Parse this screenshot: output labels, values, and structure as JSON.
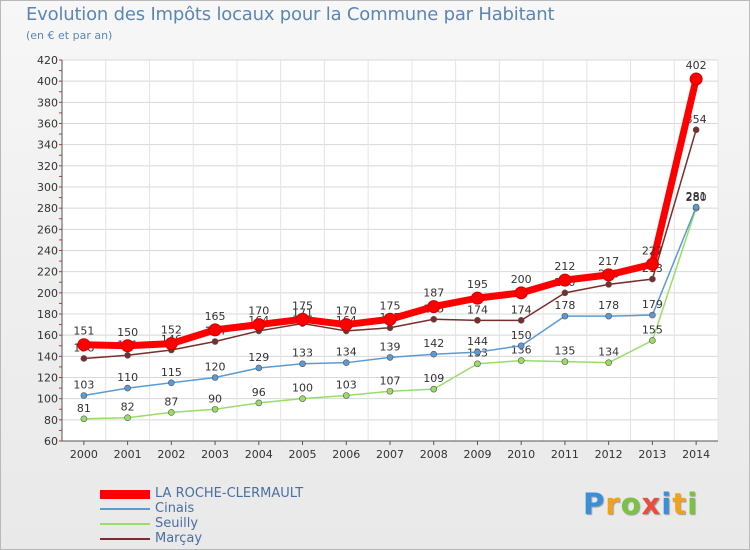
{
  "chart_data": {
    "type": "line",
    "title": "Evolution des Impôts locaux pour la Commune par Habitant",
    "subtitle": "(en € et par an)",
    "categories": [
      "2000",
      "2001",
      "2002",
      "2003",
      "2004",
      "2005",
      "2006",
      "2007",
      "2008",
      "2009",
      "2010",
      "2011",
      "2012",
      "2013",
      "2014"
    ],
    "ylim": [
      60,
      420
    ],
    "yticks": [
      60,
      80,
      100,
      120,
      140,
      160,
      180,
      200,
      220,
      240,
      260,
      280,
      300,
      320,
      340,
      360,
      380,
      400,
      420
    ],
    "grid": true,
    "legend_position": "bottom-left",
    "series": [
      {
        "name": "LA ROCHE-CLERMAULT",
        "color": "#ff0000",
        "values": [
          151,
          150,
          152,
          165,
          170,
          175,
          170,
          175,
          187,
          195,
          200,
          212,
          217,
          227,
          402
        ],
        "labels": [
          "151",
          "150",
          "152",
          "165",
          "170",
          "175",
          "170",
          "175",
          "187",
          "195",
          "200",
          "212",
          "217",
          "227",
          "402"
        ]
      },
      {
        "name": "Cinais",
        "color": "#5b9bd5",
        "values": [
          103,
          110,
          115,
          120,
          129,
          133,
          134,
          139,
          142,
          144,
          150,
          178,
          178,
          179,
          281
        ],
        "labels": [
          "103",
          "110",
          "115",
          "120",
          "129",
          "133",
          "134",
          "139",
          "142",
          "144",
          "150",
          "178",
          "178",
          "179",
          "281"
        ]
      },
      {
        "name": "Seuilly",
        "color": "#99dd66",
        "values": [
          81,
          82,
          87,
          90,
          96,
          100,
          103,
          107,
          109,
          133,
          136,
          135,
          134,
          155,
          280
        ],
        "labels": [
          "81",
          "82",
          "87",
          "90",
          "96",
          "100",
          "103",
          "107",
          "109",
          "133",
          "136",
          "135",
          "134",
          "155",
          "280"
        ]
      },
      {
        "name": "Marçay",
        "color": "#7a2d2d",
        "values": [
          138,
          141,
          146,
          154,
          164,
          171,
          164,
          167,
          175,
          174,
          174,
          200,
          208,
          213,
          354
        ],
        "labels": [
          "138",
          "141",
          "146",
          "154",
          "164",
          "171",
          "164",
          "167",
          "175",
          "174",
          "174",
          "200",
          "208",
          "213",
          "354"
        ]
      }
    ]
  },
  "logo": {
    "letters": [
      "P",
      "r",
      "o",
      "x",
      "i",
      "t",
      "i"
    ],
    "colors": [
      "#3a8fd8",
      "#f2a11b",
      "#7cc242",
      "#e94e3c",
      "#3a8fd8",
      "#f2a11b",
      "#7cc242"
    ]
  }
}
